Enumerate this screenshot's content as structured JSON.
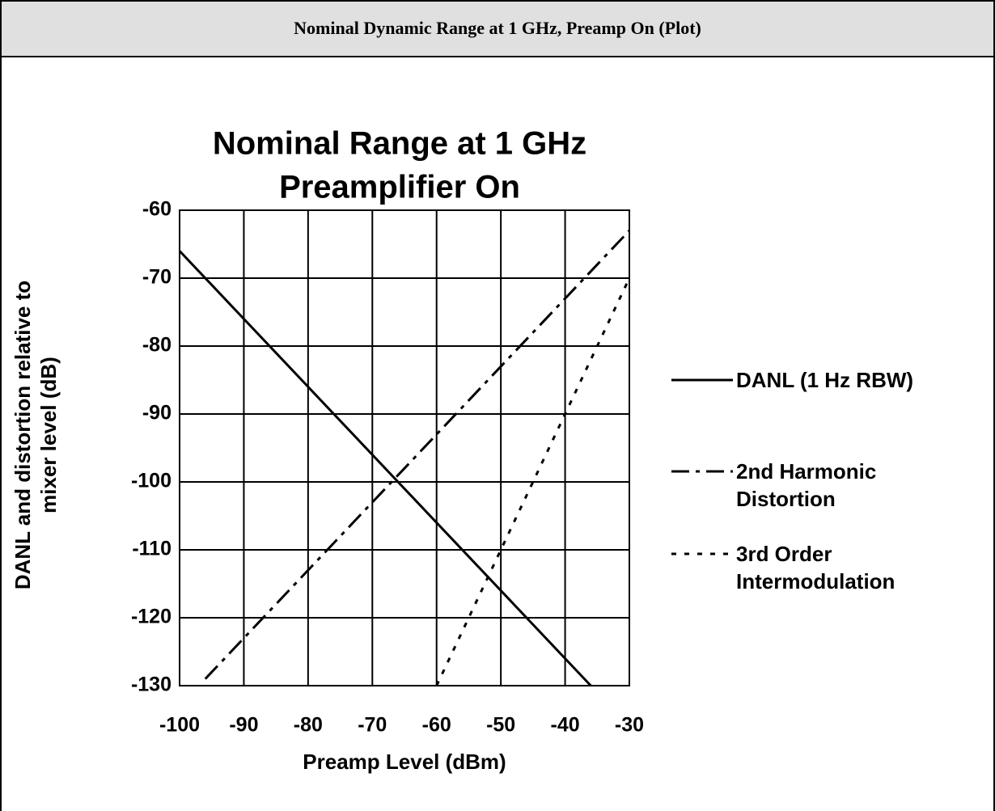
{
  "header": {
    "title": "Nominal Dynamic Range at 1 GHz, Preamp On (Plot)"
  },
  "chart_data": {
    "type": "line",
    "title": [
      "Nominal Range at 1 GHz",
      "Preamplifier On"
    ],
    "xlabel": "Preamp Level (dBm)",
    "ylabel": [
      "DANL and distortion relative to",
      "mixer level (dB)"
    ],
    "xlim": [
      -100,
      -30
    ],
    "xticks": [
      -100,
      -90,
      -80,
      -70,
      -60,
      -50,
      -40,
      -30
    ],
    "ylim": [
      -130,
      -60
    ],
    "yticks": [
      -60,
      -70,
      -80,
      -90,
      -100,
      -110,
      -120,
      -130
    ],
    "grid": true,
    "legend": "right",
    "series": [
      {
        "name": "DANL (1 Hz RBW)",
        "color": "#000000",
        "dash": "solid",
        "x": [
          -100,
          -36
        ],
        "values": [
          -66,
          -130
        ]
      },
      {
        "name": "2nd Harmonic Distortion",
        "color": "#000000",
        "dash": "dashdot",
        "x": [
          -96,
          -30
        ],
        "values": [
          -129,
          -63
        ]
      },
      {
        "name": "3rd Order Intermodulation",
        "color": "#000000",
        "dash": "dotted",
        "x": [
          -60,
          -30
        ],
        "values": [
          -130,
          -70
        ]
      }
    ]
  }
}
